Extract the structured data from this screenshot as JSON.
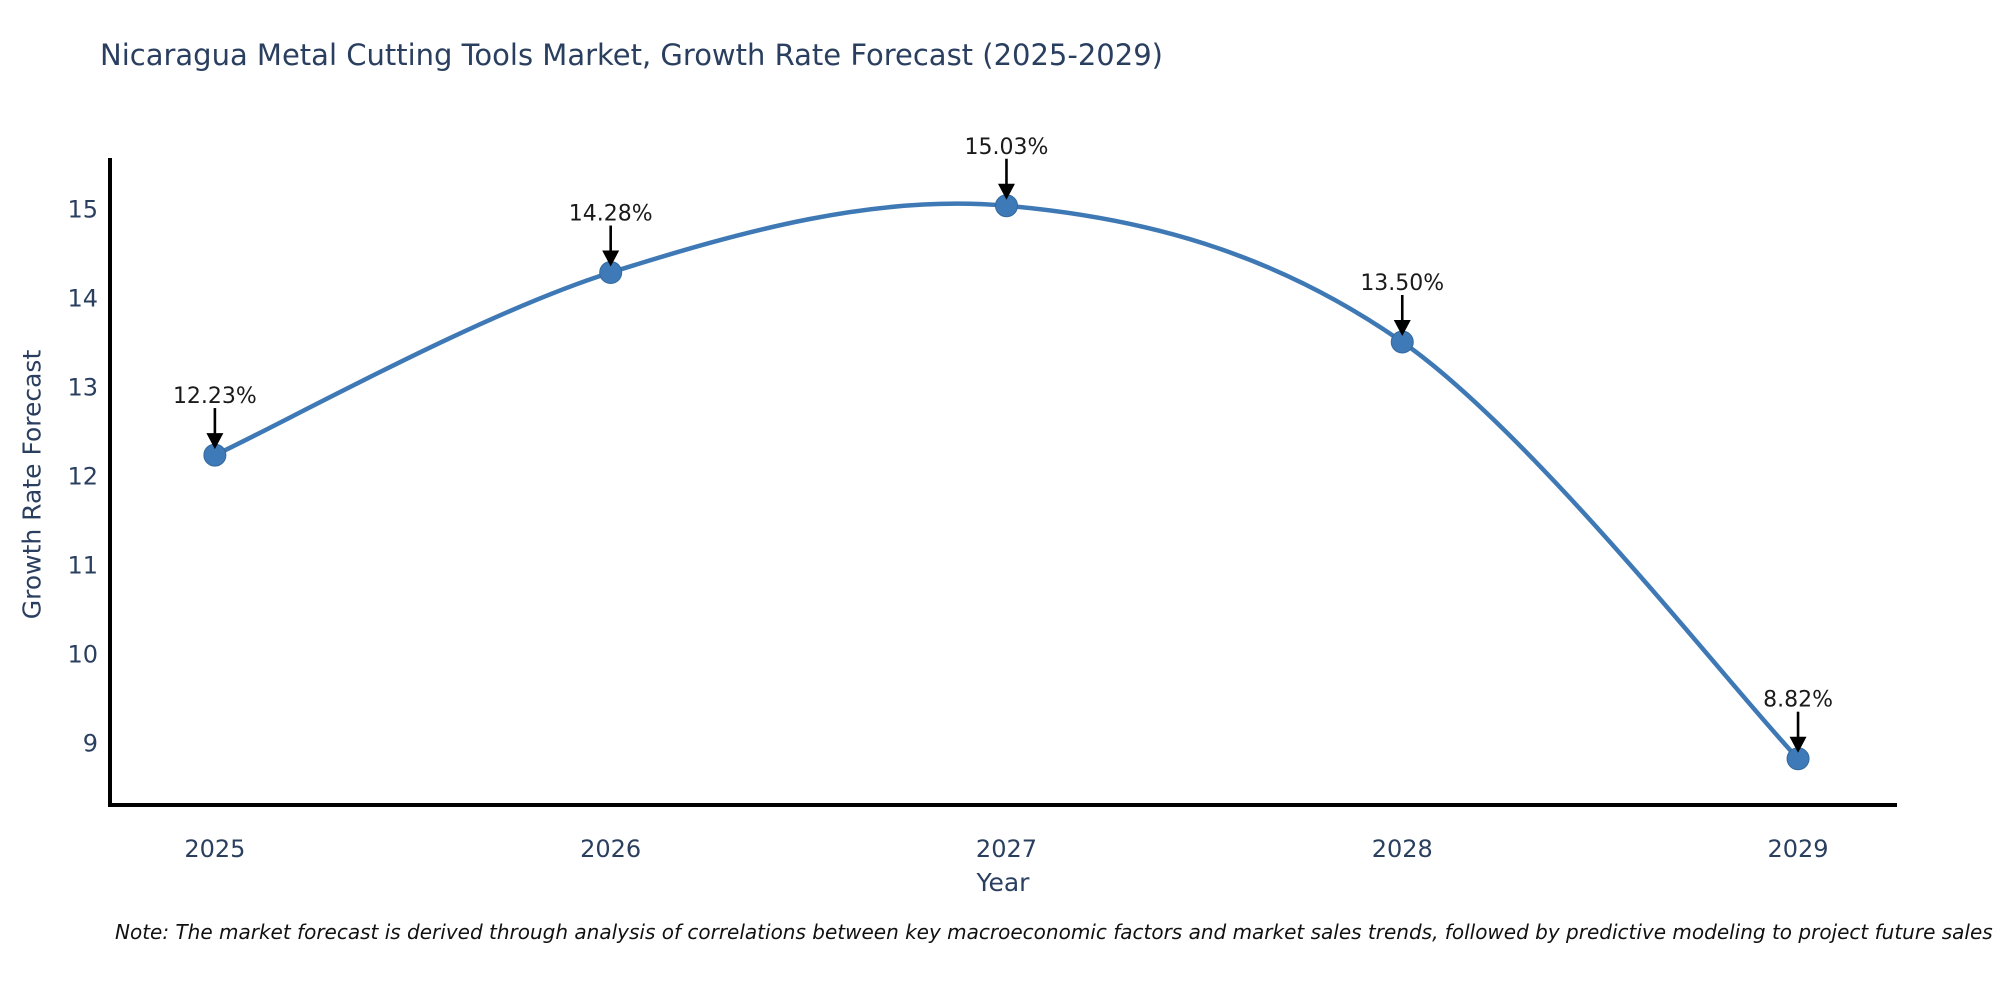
{
  "chart_data": {
    "type": "line",
    "title": "Nicaragua Metal Cutting Tools Market, Growth Rate Forecast (2025-2029)",
    "xlabel": "Year",
    "ylabel": "Growth Rate Forecast",
    "x": [
      2025,
      2026,
      2027,
      2028,
      2029
    ],
    "values": [
      12.23,
      14.28,
      15.03,
      13.5,
      8.82
    ],
    "point_labels": [
      "12.23%",
      "14.28%",
      "15.03%",
      "13.50%",
      "8.82%"
    ],
    "yticks": [
      9,
      10,
      11,
      12,
      13,
      14,
      15
    ],
    "xticks": [
      2025,
      2026,
      2027,
      2028,
      2029
    ],
    "ylim": [
      8.3,
      15.6
    ],
    "xlim": [
      2024.735,
      2029.25
    ],
    "line_shape": "spline",
    "grid": false,
    "legend": "none",
    "colors": {
      "line": "#3E79B5",
      "marker": "#3E7AB8",
      "marker_edge": "#35689C",
      "axis_line": "#000000",
      "tick_font": "#2a3f5f",
      "title_font": "#2a3f5f",
      "annotation_font": "#1a1a1a",
      "arrow": "#000000",
      "background": "#ffffff"
    },
    "note": "Note: The market forecast is derived through analysis of correlations between key macroeconomic factors and market sales trends, followed by predictive modeling to project future sales"
  }
}
